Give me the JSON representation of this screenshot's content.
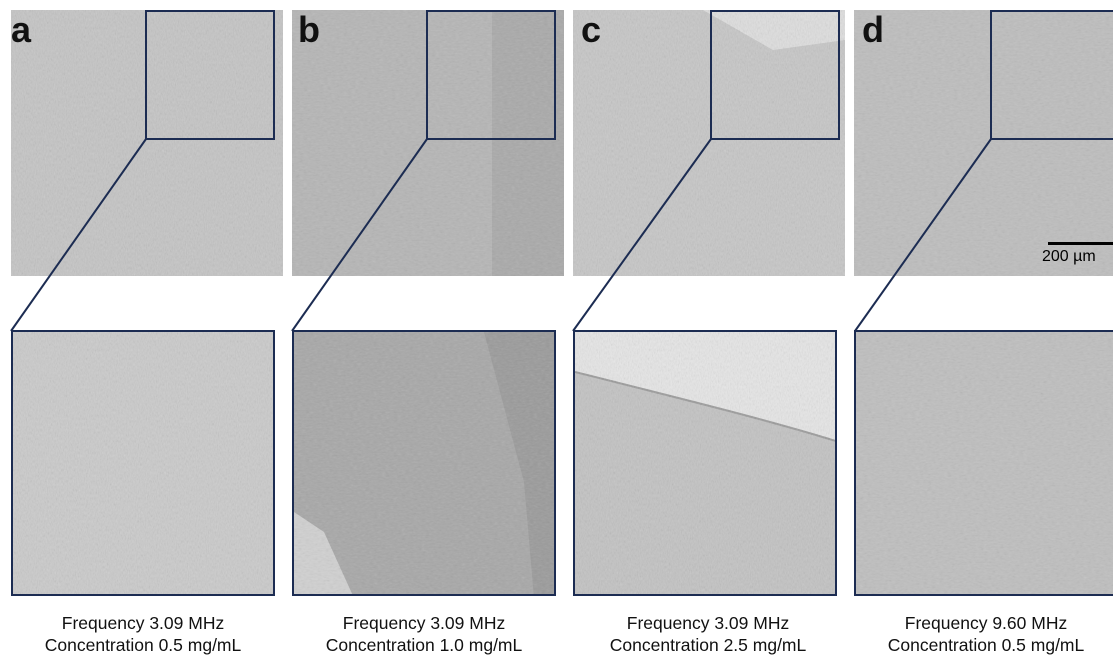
{
  "panels": [
    {
      "label": "a",
      "frequency": "Frequency 3.09 MHz",
      "concentration": "Concentration 0.5 mg/mL"
    },
    {
      "label": "b",
      "frequency": "Frequency 3.09 MHz",
      "concentration": "Concentration 1.0 mg/mL"
    },
    {
      "label": "c",
      "frequency": "Frequency 3.09 MHz",
      "concentration": "Concentration 2.5 mg/mL"
    },
    {
      "label": "d",
      "frequency": "Frequency 9.60 MHz",
      "concentration": "Concentration 0.5 mg/mL"
    }
  ],
  "scale_bar": {
    "label": "200 µm"
  },
  "colors": {
    "frame": "#1c2c52"
  }
}
